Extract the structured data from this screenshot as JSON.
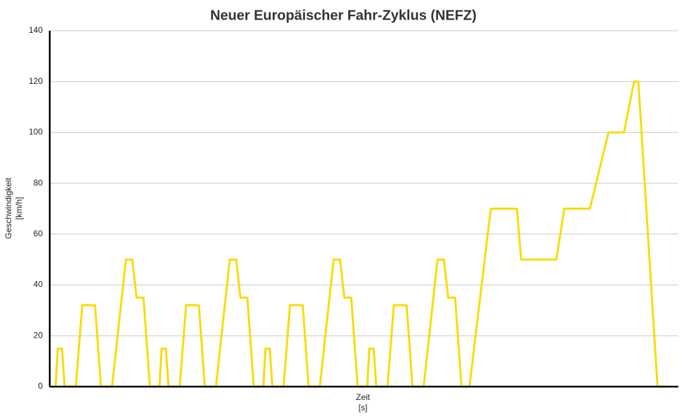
{
  "chart_data": {
    "type": "line",
    "title": "Neuer Europäischer Fahr-Zyklus (NEFZ)",
    "x_label": [
      "Zeit",
      "[s]"
    ],
    "y_label": [
      "Geschwindigkeit",
      "[km/h]"
    ],
    "x": [
      0,
      11,
      15,
      23,
      28,
      49,
      61,
      85,
      96,
      117,
      143,
      155,
      163,
      176,
      188,
      195,
      206,
      210,
      218,
      223,
      244,
      256,
      280,
      291,
      312,
      338,
      350,
      358,
      371,
      383,
      390,
      401,
      405,
      413,
      418,
      439,
      451,
      475,
      486,
      507,
      533,
      545,
      553,
      566,
      578,
      585,
      596,
      600,
      608,
      613,
      634,
      646,
      670,
      681,
      702,
      728,
      740,
      748,
      761,
      773,
      788,
      828,
      877,
      885,
      951,
      966,
      1014,
      1049,
      1078,
      1097,
      1105,
      1141,
      1160
    ],
    "series": [
      {
        "color": "#f7dc0a",
        "values": [
          0,
          0,
          15,
          15,
          0,
          0,
          32,
          32,
          0,
          0,
          50,
          50,
          35,
          35,
          0,
          0,
          0,
          15,
          15,
          0,
          0,
          32,
          32,
          0,
          0,
          50,
          50,
          35,
          35,
          0,
          0,
          0,
          15,
          15,
          0,
          0,
          32,
          32,
          0,
          0,
          50,
          50,
          35,
          35,
          0,
          0,
          0,
          15,
          15,
          0,
          0,
          32,
          32,
          0,
          0,
          50,
          50,
          35,
          35,
          0,
          0,
          70,
          70,
          50,
          50,
          70,
          70,
          100,
          100,
          120,
          120,
          0,
          0
        ]
      }
    ],
    "xlim": [
      0,
      1180
    ],
    "ylim": [
      0,
      140
    ],
    "yticks": [
      0,
      20,
      40,
      60,
      80,
      100,
      120,
      140
    ],
    "grid": true
  }
}
